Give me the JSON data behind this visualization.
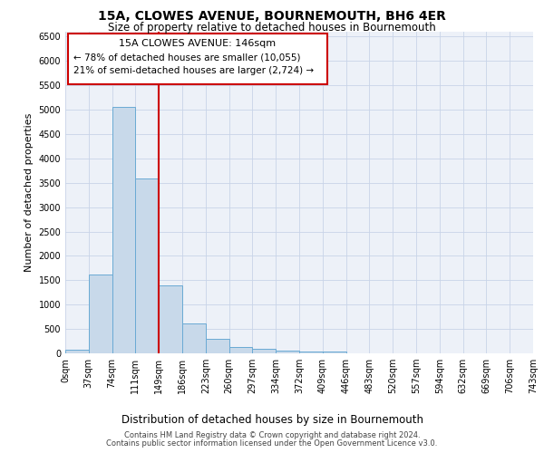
{
  "title": "15A, CLOWES AVENUE, BOURNEMOUTH, BH6 4ER",
  "subtitle": "Size of property relative to detached houses in Bournemouth",
  "xlabel": "Distribution of detached houses by size in Bournemouth",
  "ylabel": "Number of detached properties",
  "bar_values": [
    75,
    1620,
    5060,
    3580,
    1400,
    620,
    300,
    130,
    90,
    50,
    40,
    40,
    0,
    0,
    0,
    0,
    0,
    0,
    0,
    0
  ],
  "bar_labels": [
    "0sqm",
    "37sqm",
    "74sqm",
    "111sqm",
    "149sqm",
    "186sqm",
    "223sqm",
    "260sqm",
    "297sqm",
    "334sqm",
    "372sqm",
    "409sqm",
    "446sqm",
    "483sqm",
    "520sqm",
    "557sqm",
    "594sqm",
    "632sqm",
    "669sqm",
    "706sqm",
    "743sqm"
  ],
  "bar_color": "#c8d9ea",
  "bar_edgecolor": "#6aaad4",
  "bar_linewidth": 0.7,
  "grid_color": "#c8d4e8",
  "background_color": "#edf1f8",
  "vline_x": 4,
  "vline_color": "#cc0000",
  "ylim": [
    0,
    6600
  ],
  "yticks": [
    0,
    500,
    1000,
    1500,
    2000,
    2500,
    3000,
    3500,
    4000,
    4500,
    5000,
    5500,
    6000,
    6500
  ],
  "annotation_title": "15A CLOWES AVENUE: 146sqm",
  "annotation_line1": "← 78% of detached houses are smaller (10,055)",
  "annotation_line2": "21% of semi-detached houses are larger (2,724) →",
  "footer_line1": "Contains HM Land Registry data © Crown copyright and database right 2024.",
  "footer_line2": "Contains public sector information licensed under the Open Government Licence v3.0.",
  "title_fontsize": 10,
  "subtitle_fontsize": 8.5,
  "xlabel_fontsize": 8.5,
  "ylabel_fontsize": 8,
  "tick_fontsize": 7,
  "annot_fontsize": 8,
  "footer_fontsize": 6
}
